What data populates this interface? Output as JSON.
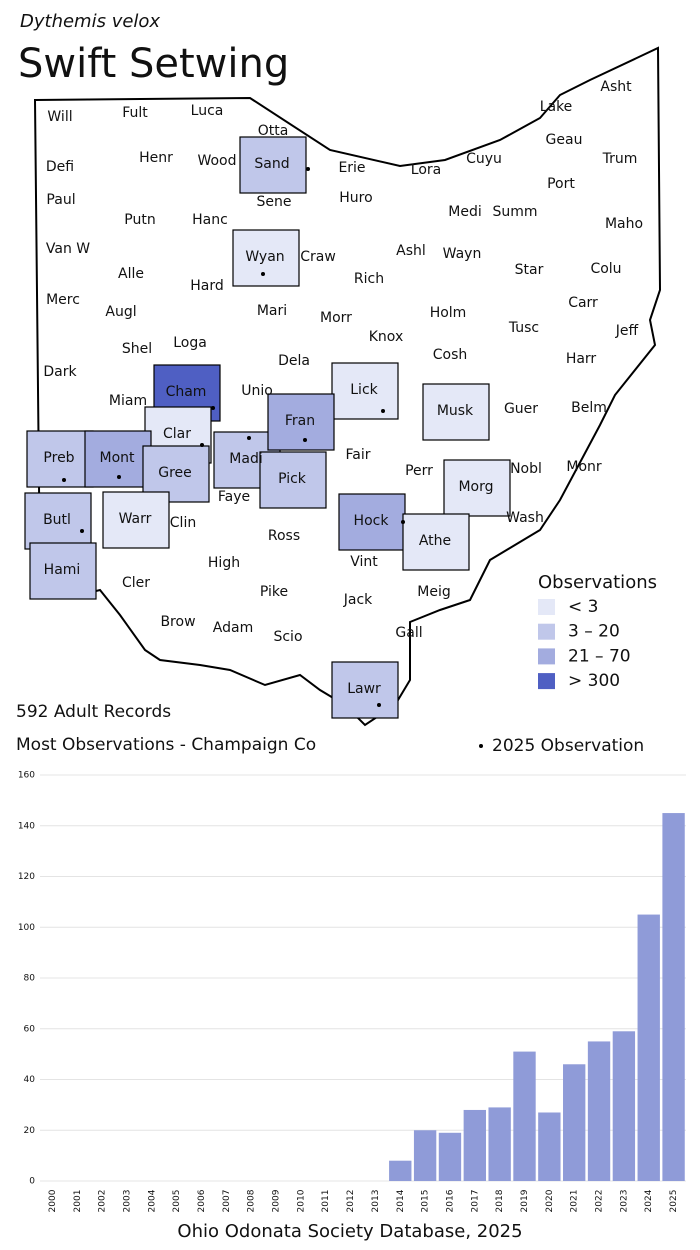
{
  "header": {
    "subtitle": "Dythemis velox",
    "title": "Swift Setwing"
  },
  "map": {
    "legend": {
      "title": "Observations",
      "items": [
        {
          "label": "< 3",
          "color": "#e4e8f7"
        },
        {
          "label": "3 – 20",
          "color": "#c0c7ea"
        },
        {
          "label": "21 – 70",
          "color": "#a3acdf"
        },
        {
          "label": "> 300",
          "color": "#4f5fc3"
        }
      ]
    },
    "dot_legend": "2025 Observation",
    "counties": [
      {
        "label": "Will"
      },
      {
        "label": "Fult"
      },
      {
        "label": "Luca"
      },
      {
        "label": "Otta"
      },
      {
        "label": "Sand",
        "level": 1,
        "dot": true
      },
      {
        "label": "Erie"
      },
      {
        "label": "Lora"
      },
      {
        "label": "Cuyu"
      },
      {
        "label": "Lake"
      },
      {
        "label": "Asht"
      },
      {
        "label": "Geau"
      },
      {
        "label": "Trum"
      },
      {
        "label": "Port"
      },
      {
        "label": "Summ"
      },
      {
        "label": "Medi"
      },
      {
        "label": "Maho"
      },
      {
        "label": "Defi"
      },
      {
        "label": "Henr"
      },
      {
        "label": "Wood"
      },
      {
        "label": "Huro"
      },
      {
        "label": "Sene"
      },
      {
        "label": "Paul"
      },
      {
        "label": "Putn"
      },
      {
        "label": "Hanc"
      },
      {
        "label": "Wyan",
        "level": 0,
        "dot": true
      },
      {
        "label": "Craw"
      },
      {
        "label": "Ashl"
      },
      {
        "label": "Wayn"
      },
      {
        "label": "Star"
      },
      {
        "label": "Colu"
      },
      {
        "label": "Van W"
      },
      {
        "label": "Alle"
      },
      {
        "label": "Hard"
      },
      {
        "label": "Rich"
      },
      {
        "label": "Merc"
      },
      {
        "label": "Augl"
      },
      {
        "label": "Mari"
      },
      {
        "label": "Morr"
      },
      {
        "label": "Holm"
      },
      {
        "label": "Tusc"
      },
      {
        "label": "Carr"
      },
      {
        "label": "Jeff"
      },
      {
        "label": "Knox"
      },
      {
        "label": "Shel"
      },
      {
        "label": "Loga"
      },
      {
        "label": "Dela"
      },
      {
        "label": "Cosh"
      },
      {
        "label": "Harr"
      },
      {
        "label": "Dark"
      },
      {
        "label": "Cham",
        "level": 3,
        "dot": true
      },
      {
        "label": "Unio"
      },
      {
        "label": "Lick",
        "level": 0,
        "dot": true
      },
      {
        "label": "Musk",
        "level": 0
      },
      {
        "label": "Guer"
      },
      {
        "label": "Belm"
      },
      {
        "label": "Miam"
      },
      {
        "label": "Clar",
        "level": 0,
        "dot": true
      },
      {
        "label": "Madi",
        "level": 1,
        "dot": true
      },
      {
        "label": "Fran",
        "level": 2,
        "dot": true
      },
      {
        "label": "Fair"
      },
      {
        "label": "Perr"
      },
      {
        "label": "Nobl"
      },
      {
        "label": "Monr"
      },
      {
        "label": "Preb",
        "level": 1,
        "dot": true
      },
      {
        "label": "Mont",
        "level": 2,
        "dot": true
      },
      {
        "label": "Gree",
        "level": 1
      },
      {
        "label": "Faye"
      },
      {
        "label": "Pick",
        "level": 1
      },
      {
        "label": "Morg",
        "level": 0
      },
      {
        "label": "Butl",
        "level": 1,
        "dot": true
      },
      {
        "label": "Warr",
        "level": 0
      },
      {
        "label": "Clin"
      },
      {
        "label": "Hock",
        "level": 2,
        "dot": true
      },
      {
        "label": "Wash"
      },
      {
        "label": "Athe",
        "level": 0
      },
      {
        "label": "Ross"
      },
      {
        "label": "Hami",
        "level": 1
      },
      {
        "label": "Cler"
      },
      {
        "label": "High"
      },
      {
        "label": "Vint"
      },
      {
        "label": "Meig"
      },
      {
        "label": "Pike"
      },
      {
        "label": "Jack"
      },
      {
        "label": "Brow"
      },
      {
        "label": "Adam"
      },
      {
        "label": "Scio"
      },
      {
        "label": "Gall"
      },
      {
        "label": "Lawr",
        "level": 1,
        "dot": true
      }
    ]
  },
  "stats": {
    "records": "592 Adult Records",
    "most": "Most Observations - Champaign Co"
  },
  "chart_data": {
    "type": "bar",
    "color": "#8f9bd8",
    "grid": true,
    "categories": [
      "2000",
      "2001",
      "2002",
      "2003",
      "2004",
      "2005",
      "2006",
      "2007",
      "2008",
      "2009",
      "2010",
      "2011",
      "2012",
      "2013",
      "2014",
      "2015",
      "2016",
      "2017",
      "2018",
      "2019",
      "2020",
      "2021",
      "2022",
      "2023",
      "2024",
      "2025"
    ],
    "values": [
      0,
      0,
      0,
      0,
      0,
      0,
      0,
      0,
      0,
      0,
      0,
      0,
      0,
      0,
      8,
      20,
      19,
      28,
      29,
      51,
      27,
      46,
      55,
      59,
      105,
      145
    ],
    "ylim": [
      0,
      160
    ],
    "yticks": [
      0,
      20,
      40,
      60,
      80,
      100,
      120,
      140,
      160
    ]
  },
  "footer": "Ohio Odonata Society Database, 2025"
}
